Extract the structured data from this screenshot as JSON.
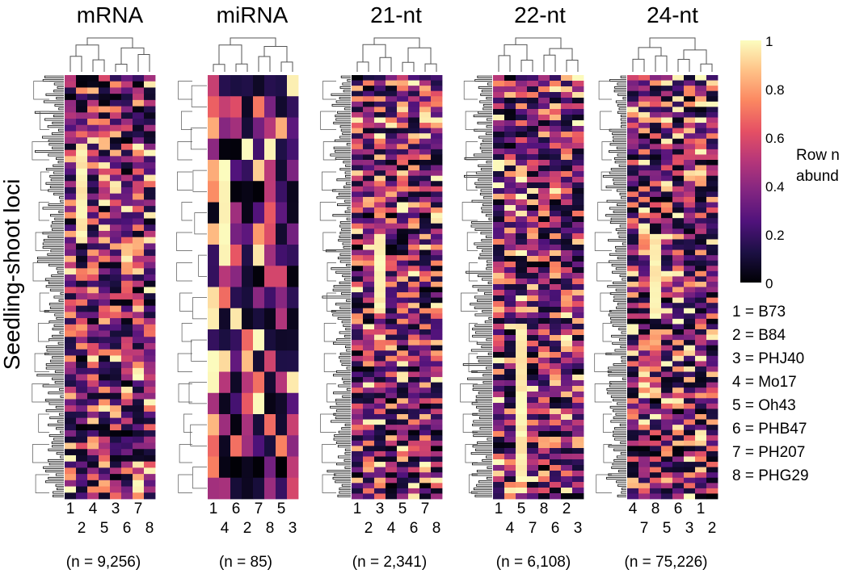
{
  "figure": {
    "ylabel": "Seedling-shoot loci",
    "legend_title_line1": "Row n",
    "legend_title_line2": "abund",
    "colorbar_ticks": [
      "1",
      "0.8",
      "0.6",
      "0.4",
      "0.2",
      "0"
    ],
    "genotype_key": [
      "1 = B73",
      "2 = B84",
      "3 = PHJ40",
      "4 = Mo17",
      "5 = Oh43",
      "6 = PHB47",
      "7 = PH207",
      "8 = PHG29"
    ]
  },
  "colors": {
    "colormap": [
      "#000004",
      "#1c1044",
      "#4f127b",
      "#812581",
      "#b5367a",
      "#e55064",
      "#fb8761",
      "#fec287",
      "#fcfdbf"
    ],
    "dendrogram": "#555555",
    "row_dendrogram_dense": "#000000"
  },
  "chart_data": {
    "type": "heatmap",
    "value_range": [
      0,
      1
    ],
    "colorbar_label": "Row n abund",
    "panels": [
      {
        "title": "mRNA",
        "count_label": "(n = 9,256)",
        "n": 9256,
        "column_order": [
          "1",
          "2",
          "4",
          "5",
          "3",
          "6",
          "7",
          "8"
        ],
        "col_labels_top": [
          "1",
          "4",
          "3",
          "7"
        ],
        "col_labels_bottom": [
          "2",
          "5",
          "6",
          "8"
        ]
      },
      {
        "title": "miRNA",
        "count_label": "(n = 85)",
        "n": 85,
        "column_order": [
          "1",
          "4",
          "6",
          "2",
          "7",
          "8",
          "5",
          "3"
        ],
        "col_labels_top": [
          "1",
          "6",
          "7",
          "5"
        ],
        "col_labels_bottom": [
          "4",
          "2",
          "8",
          "3"
        ]
      },
      {
        "title": "21-nt",
        "count_label": "(n = 2,341)",
        "n": 2341,
        "column_order": [
          "1",
          "2",
          "3",
          "4",
          "5",
          "6",
          "7",
          "8"
        ],
        "col_labels_top": [
          "1",
          "3",
          "5",
          "7"
        ],
        "col_labels_bottom": [
          "2",
          "4",
          "6",
          "8"
        ]
      },
      {
        "title": "22-nt",
        "count_label": "(n = 6,108)",
        "n": 6108,
        "column_order": [
          "1",
          "4",
          "5",
          "7",
          "8",
          "6",
          "2",
          "3"
        ],
        "col_labels_top": [
          "1",
          "5",
          "8",
          "2"
        ],
        "col_labels_bottom": [
          "4",
          "7",
          "6",
          "3"
        ]
      },
      {
        "title": "24-nt",
        "count_label": "(n = 75,226)",
        "n": 75226,
        "column_order": [
          "4",
          "7",
          "8",
          "5",
          "6",
          "3",
          "1",
          "2"
        ],
        "col_labels_top": [
          "4",
          "8",
          "6",
          "1"
        ],
        "col_labels_bottom": [
          "7",
          "5",
          "3",
          "2"
        ]
      }
    ]
  }
}
